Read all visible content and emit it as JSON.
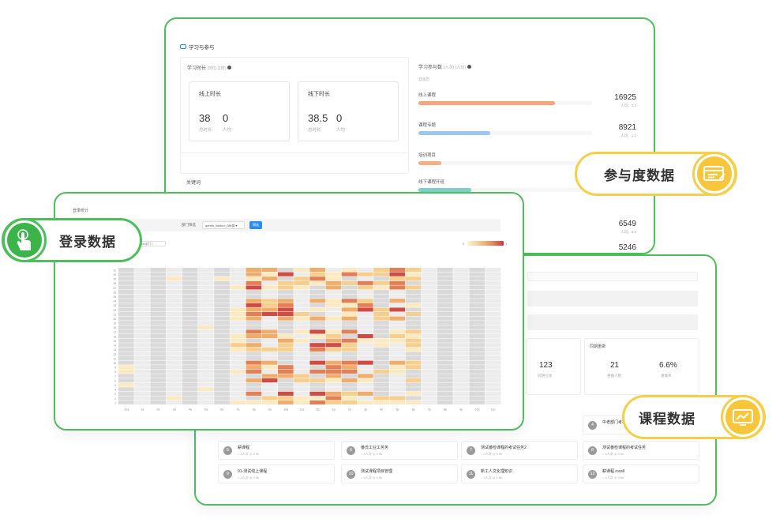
{
  "learning": {
    "section_title": "学习与参与",
    "time_panel": {
      "title": "学习时长",
      "title_unit": "(时0)",
      "title_extra": "(1时)",
      "online": {
        "title": "线上时长",
        "total": "38",
        "per": "0",
        "total_label": "总时长",
        "per_label": "人均"
      },
      "offline": {
        "title": "线下时长",
        "total": "38.5",
        "per": "0",
        "total_label": "总时长",
        "per_label": "人均"
      }
    },
    "keyword_title": "关键词",
    "participation_panel": {
      "title": "学习参与数",
      "title_unit": "(人次)",
      "title_extra": "(人均)",
      "summary": "15925",
      "items": [
        {
          "label": "线上课程",
          "value": "16925",
          "sub": "人均：2.2",
          "fill": 0.72,
          "color": "#f4a77a"
        },
        {
          "label": "课程专题",
          "value": "8921",
          "sub": "人均：1.2",
          "fill": 0.38,
          "color": "#9cc8ef"
        },
        {
          "label": "培训项目",
          "value": "",
          "sub": "",
          "fill": 0.12,
          "color": "#f4b07f"
        },
        {
          "label": "线下课程开班",
          "value": "",
          "sub": "",
          "fill": 0.28,
          "color": "#7cd3c9"
        },
        {
          "label": "",
          "value": "6549",
          "sub": "人均：0.9",
          "fill": 0,
          "color": "#f5d79b"
        },
        {
          "label": "",
          "value": "5246",
          "sub": "人均：0.7",
          "fill": 0,
          "color": "#f5d79b"
        }
      ]
    }
  },
  "course": {
    "stat_123": "123",
    "stat_123_label": "同期引领",
    "header_fullrate": "同期重做",
    "stat_21": "21",
    "stat_21_label": "重做人数",
    "stat_66": "6.6%",
    "stat_66_label": "重做率",
    "top_right_item": "中老部门考核",
    "items": [
      {
        "num": "5",
        "name": "耕课程",
        "meta": "○ 4人次  ◎ 0.9k"
      },
      {
        "num": "6",
        "name": "番氏工业工务务",
        "meta": "○ 4人次  ◎ 0.9k"
      },
      {
        "num": "7",
        "name": "测试番检课程的考试任务2",
        "meta": "○ 4人次  ◎ 0.9k"
      },
      {
        "num": "8",
        "name": "测试番检课程的考试任务",
        "meta": "○ 4人次  ◎ 0.9k"
      },
      {
        "num": "9",
        "name": "01-测试线上课程",
        "meta": "○ 4人次  ◎ 0.9k"
      },
      {
        "num": "10",
        "name": "测试课程项目管理",
        "meta": "○ 4人次  ◎ 0.9k"
      },
      {
        "num": "11",
        "name": "新工人文化理知识",
        "meta": "○ 3人次  ◎ 1.8k"
      },
      {
        "num": "12",
        "name": "耕课程 rossll",
        "meta": "○ 4人次  ◎ 0.9k"
      }
    ]
  },
  "login": {
    "title": "登录统计",
    "filter_label": "部门筛选",
    "filter_value": "admin_limited_OM部 ▾",
    "filter_button": "筛选",
    "chip": "include部门 ×",
    "legend_min": "0",
    "legend_max": "1",
    "chart_data": {
      "type": "heatmap",
      "title": "",
      "x_labels": [
        "12a",
        "1a",
        "2a",
        "3a",
        "4a",
        "5a",
        "6a",
        "7a",
        "8a",
        "9a",
        "10a",
        "11a",
        "12p",
        "1p",
        "2p",
        "3p",
        "4p",
        "5p",
        "6p",
        "7p",
        "8p",
        "9p",
        "10p",
        "11p"
      ],
      "y_count": 31,
      "legend_range": [
        0,
        1
      ]
    }
  },
  "pills": {
    "participation": "参与度数据",
    "course": "课程数据",
    "login": "登录数据"
  },
  "colors": {
    "green": "#4cbf5a",
    "yellow": "#f5cf4a",
    "blue": "#2d8cf0"
  }
}
